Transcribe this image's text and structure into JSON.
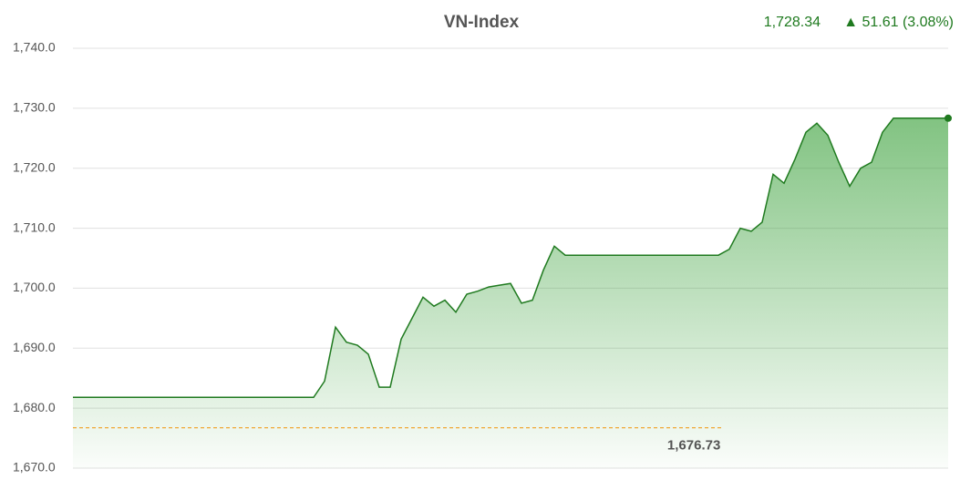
{
  "chart_data": {
    "type": "line",
    "title": "VN-Index",
    "current_label": "1,728.34",
    "change_label": "▲ 51.61 (3.08%)",
    "color": "#1f7a1f",
    "values": [
      1681.8,
      1681.8,
      1681.8,
      1681.8,
      1681.8,
      1681.8,
      1681.8,
      1681.8,
      1681.8,
      1681.8,
      1681.8,
      1681.8,
      1681.8,
      1681.8,
      1681.8,
      1681.8,
      1681.8,
      1681.8,
      1681.8,
      1681.8,
      1681.8,
      1681.8,
      1681.8,
      1684.5,
      1693.5,
      1691,
      1690.5,
      1689,
      1683.5,
      1683.5,
      1691.5,
      1695,
      1698.5,
      1697,
      1698,
      1696,
      1699,
      1699.5,
      1700.2,
      1700.5,
      1700.8,
      1697.5,
      1698,
      1703,
      1707,
      1705.5,
      1705.5,
      1705.5,
      1705.5,
      1705.5,
      1705.5,
      1705.5,
      1705.5,
      1705.5,
      1705.5,
      1705.5,
      1705.5,
      1705.5,
      1705.5,
      1705.5,
      1706.5,
      1710,
      1709.5,
      1711,
      1719,
      1717.5,
      1721.5,
      1726,
      1727.5,
      1725.5,
      1721,
      1717,
      1720,
      1721,
      1726,
      1728.34,
      1728.34,
      1728.34,
      1728.34,
      1728.34,
      1728.34
    ],
    "reference": {
      "value": 1676.73,
      "label": "1,676.73"
    },
    "ylim": [
      1670,
      1740
    ],
    "yticks": [
      {
        "value": 1670,
        "label": "1,670.0"
      },
      {
        "value": 1680,
        "label": "1,680.0"
      },
      {
        "value": 1690,
        "label": "1,690.0"
      },
      {
        "value": 1700,
        "label": "1,700.0"
      },
      {
        "value": 1710,
        "label": "1,710.0"
      },
      {
        "value": 1720,
        "label": "1,720.0"
      },
      {
        "value": 1730,
        "label": "1,730.0"
      },
      {
        "value": 1740,
        "label": "1,740.0"
      }
    ],
    "grid": true
  }
}
